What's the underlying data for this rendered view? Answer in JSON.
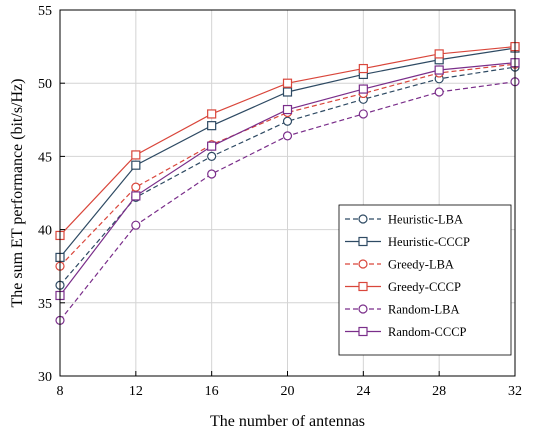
{
  "chart_data": {
    "type": "line",
    "xlabel": "The number of antennas",
    "ylabel": "The sum ET performance (bit/s/Hz)",
    "x": [
      8,
      12,
      16,
      20,
      24,
      28,
      32
    ],
    "xlim": [
      8,
      32
    ],
    "ylim": [
      30,
      55
    ],
    "xticks": [
      8,
      12,
      16,
      20,
      24,
      28,
      32
    ],
    "yticks": [
      30,
      35,
      40,
      45,
      50,
      55
    ],
    "grid": true,
    "legend_position": "right-middle",
    "series": [
      {
        "name": "Heuristic-LBA",
        "values": [
          36.2,
          42.2,
          45.0,
          47.4,
          48.9,
          50.3,
          51.1
        ],
        "color": "#2e4a63",
        "dashed": true,
        "marker": "circle"
      },
      {
        "name": "Heuristic-CCCP",
        "values": [
          38.1,
          44.4,
          47.1,
          49.4,
          50.6,
          51.6,
          52.4
        ],
        "color": "#2e4a63",
        "dashed": false,
        "marker": "square"
      },
      {
        "name": "Greedy-LBA",
        "values": [
          37.5,
          42.9,
          45.8,
          48.0,
          49.3,
          50.7,
          51.3
        ],
        "color": "#d9463b",
        "dashed": true,
        "marker": "circle"
      },
      {
        "name": "Greedy-CCCP",
        "values": [
          39.6,
          45.1,
          47.9,
          50.0,
          51.0,
          52.0,
          52.5
        ],
        "color": "#d9463b",
        "dashed": false,
        "marker": "square"
      },
      {
        "name": "Random-LBA",
        "values": [
          33.8,
          40.3,
          43.8,
          46.4,
          47.9,
          49.4,
          50.1
        ],
        "color": "#7a2e8a",
        "dashed": true,
        "marker": "circle"
      },
      {
        "name": "Random-CCCP",
        "values": [
          35.5,
          42.3,
          45.7,
          48.2,
          49.6,
          50.9,
          51.4
        ],
        "color": "#7a2e8a",
        "dashed": false,
        "marker": "square"
      }
    ]
  }
}
